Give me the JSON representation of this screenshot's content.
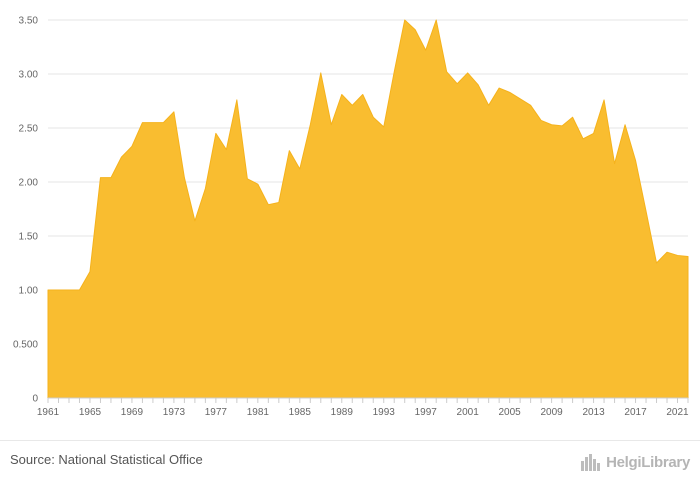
{
  "chart_data": {
    "type": "area",
    "title": "",
    "xlabel": "",
    "ylabel": "",
    "x": [
      1961,
      1962,
      1963,
      1964,
      1965,
      1966,
      1967,
      1968,
      1969,
      1970,
      1971,
      1972,
      1973,
      1974,
      1975,
      1976,
      1977,
      1978,
      1979,
      1980,
      1981,
      1982,
      1983,
      1984,
      1985,
      1986,
      1987,
      1988,
      1989,
      1990,
      1991,
      1992,
      1993,
      1994,
      1995,
      1996,
      1997,
      1998,
      1999,
      2000,
      2001,
      2002,
      2003,
      2004,
      2005,
      2006,
      2007,
      2008,
      2009,
      2010,
      2011,
      2012,
      2013,
      2014,
      2015,
      2016,
      2017,
      2018,
      2019,
      2020,
      2021,
      2022
    ],
    "values": [
      1.0,
      1.0,
      1.0,
      1.0,
      1.17,
      2.04,
      2.04,
      2.23,
      2.33,
      2.55,
      2.55,
      2.55,
      2.65,
      2.04,
      1.64,
      1.94,
      2.45,
      2.3,
      2.76,
      2.03,
      1.98,
      1.79,
      1.81,
      2.29,
      2.12,
      2.53,
      3.01,
      2.53,
      2.81,
      2.71,
      2.81,
      2.6,
      2.51,
      3.02,
      3.5,
      3.41,
      3.22,
      3.5,
      3.02,
      2.91,
      3.01,
      2.9,
      2.71,
      2.87,
      2.83,
      2.77,
      2.71,
      2.57,
      2.53,
      2.52,
      2.6,
      2.4,
      2.45,
      2.76,
      2.17,
      2.53,
      2.2,
      1.73,
      1.25,
      1.35,
      1.32,
      1.31
    ],
    "ylim": [
      0,
      3.5
    ],
    "y_ticks": [
      {
        "value": 0,
        "label": "0"
      },
      {
        "value": 0.5,
        "label": "0.500"
      },
      {
        "value": 1.0,
        "label": "1.00"
      },
      {
        "value": 1.5,
        "label": "1.50"
      },
      {
        "value": 2.0,
        "label": "2.00"
      },
      {
        "value": 2.5,
        "label": "2.50"
      },
      {
        "value": 3.0,
        "label": "3.00"
      },
      {
        "value": 3.5,
        "label": "3.50"
      }
    ],
    "x_ticks": [
      "1961",
      "1965",
      "1969",
      "1973",
      "1977",
      "1981",
      "1985",
      "1989",
      "1993",
      "1997",
      "2001",
      "2005",
      "2009",
      "2013",
      "2017",
      "2021"
    ],
    "grid": true,
    "legend": "none",
    "fill_color": "#F9BD30",
    "line_color": "#F5B21C",
    "grid_color": "#e6e6e6",
    "axis_color": "#cccccc"
  },
  "footer": {
    "source": "Source: National Statistical Office",
    "logo_text": "HelgiLibrary",
    "logo_icon": "city-skyline-icon"
  }
}
